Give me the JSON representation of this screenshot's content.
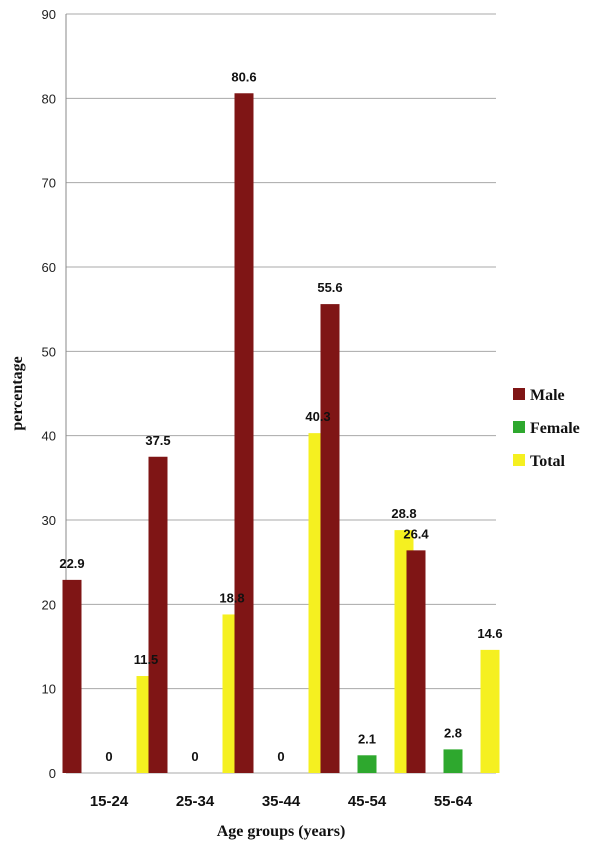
{
  "chart_data": {
    "type": "bar",
    "title": "",
    "xlabel": "Age groups (years)",
    "ylabel": "percentage",
    "ylim": [
      0,
      90
    ],
    "yticks": [
      0,
      10,
      20,
      30,
      40,
      50,
      60,
      70,
      80,
      90
    ],
    "grid": true,
    "legend_position": "right",
    "categories": [
      "15-24",
      "25-34",
      "35-44",
      "45-54",
      "55-64"
    ],
    "series": [
      {
        "name": "Male",
        "color": "#7f1515",
        "values": [
          22.9,
          37.5,
          80.6,
          55.6,
          26.4
        ],
        "labels": [
          "22.9",
          "37.5",
          "80.6",
          "55.6",
          "26.4"
        ]
      },
      {
        "name": "Female",
        "color": "#2ea82e",
        "values": [
          0,
          0,
          0,
          2.1,
          2.8
        ],
        "labels": [
          "0",
          "0",
          "0",
          "2.1",
          "2.8"
        ]
      },
      {
        "name": "Total",
        "color": "#f5f020",
        "values": [
          11.5,
          18.8,
          40.3,
          28.8,
          14.6
        ],
        "labels": [
          "11.5",
          "18.8",
          "40.3",
          "28.8",
          "14.6"
        ]
      }
    ]
  }
}
